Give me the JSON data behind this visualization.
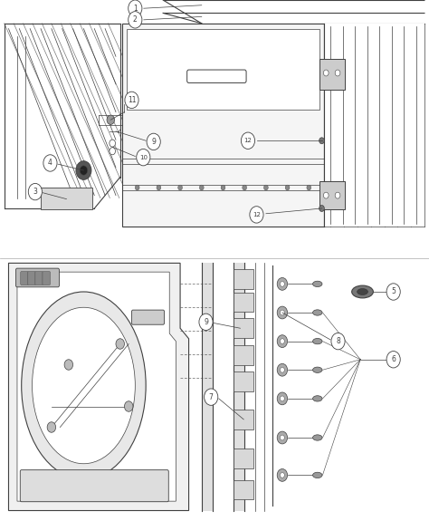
{
  "bg_color": "#ffffff",
  "lc": "#404040",
  "lc_light": "#888888",
  "fig_width": 4.74,
  "fig_height": 5.75,
  "dpi": 100,
  "top_panel": {
    "ymin": 0.52,
    "ymax": 1.0
  },
  "bot_panel": {
    "ymin": 0.0,
    "ymax": 0.5
  }
}
